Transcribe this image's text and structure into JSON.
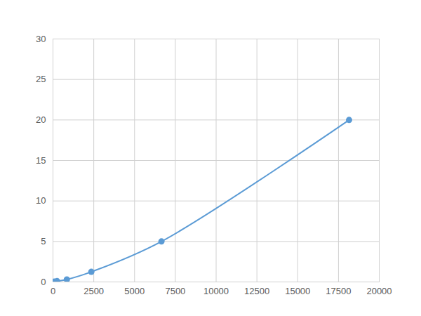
{
  "chart_data": {
    "type": "line",
    "x": [
      80,
      250,
      850,
      2350,
      6650,
      18150
    ],
    "values": [
      0.05,
      0.1,
      0.31,
      1.25,
      5,
      20
    ],
    "color": "#5b9bd5",
    "marker": "circle",
    "xlim": [
      0,
      20000
    ],
    "ylim": [
      0,
      30
    ],
    "xticks": [
      0,
      2500,
      5000,
      7500,
      10000,
      12500,
      15000,
      17500,
      20000
    ],
    "yticks": [
      0,
      5,
      10,
      15,
      20,
      25,
      30
    ],
    "grid": true
  }
}
